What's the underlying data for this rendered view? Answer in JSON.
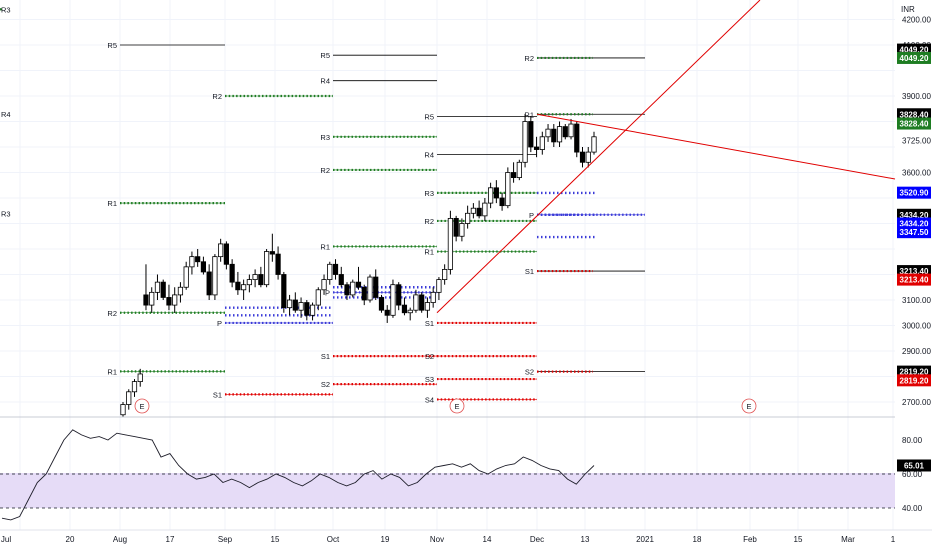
{
  "currency": "INR",
  "price_axis": {
    "ticks": [
      "4200.00",
      "4100.00",
      "3900.00",
      "3725.00",
      "3600.00",
      "3100.00",
      "3000.00",
      "2900.00",
      "2700.00"
    ],
    "tick_values": [
      4200,
      4100,
      3900,
      3725,
      3600,
      3100,
      3000,
      2900,
      2700
    ]
  },
  "time_axis": {
    "ticks": [
      "Jul",
      "20",
      "Aug",
      "17",
      "Sep",
      "15",
      "Oct",
      "19",
      "Nov",
      "14",
      "Dec",
      "13",
      "2021",
      "18",
      "Feb",
      "15",
      "Mar",
      "1"
    ]
  },
  "price_tags": [
    {
      "label": "4049.20",
      "value": 4082,
      "color": "#000000"
    },
    {
      "label": "4049.20",
      "value": 4049.2,
      "color": "#1e7d22"
    },
    {
      "label": "3828.40",
      "value": 3828.4,
      "color": "#000000"
    },
    {
      "label": "3828.40",
      "value": 3792,
      "color": "#1e7d22"
    },
    {
      "label": "3520.90",
      "value": 3520.9,
      "color": "#0000ff"
    },
    {
      "label": "3434.20",
      "value": 3434.2,
      "color": "#000000"
    },
    {
      "label": "3434.20",
      "value": 3400,
      "color": "#0000ff"
    },
    {
      "label": "3347.50",
      "value": 3366,
      "color": "#0000ff"
    },
    {
      "label": "3213.40",
      "value": 3213.4,
      "color": "#000000"
    },
    {
      "label": "3213.40",
      "value": 3180,
      "color": "#e00000"
    },
    {
      "label": "2819.20",
      "value": 2819.2,
      "color": "#000000"
    },
    {
      "label": "2819.20",
      "value": 2785,
      "color": "#e00000"
    }
  ],
  "rsi": {
    "ticks": [
      "80.00",
      "60.00",
      "40.00"
    ],
    "tick_values": [
      80,
      60,
      40
    ],
    "current_label": "65.01",
    "current": 65.01
  },
  "earnings_marker": "E",
  "colors": {
    "resistance": "#1e7d22",
    "support": "#e00000",
    "pivot": "#3b3bd8",
    "trendline": "#e00000",
    "rsi_band": "#e6dcf7",
    "candle_up": "#ffffff",
    "candle_down": "#000000"
  },
  "chart_data": {
    "type": "line",
    "title": "",
    "xlabel": "",
    "ylabel": "INR",
    "ylim": [
      2650,
      4260
    ],
    "candles": [
      {
        "x": "Jul 30",
        "o": 2650,
        "h": 2700,
        "l": 2640,
        "c": 2690
      },
      {
        "x": "Jul 31",
        "o": 2690,
        "h": 2750,
        "l": 2670,
        "c": 2740
      },
      {
        "x": "Aug 3",
        "o": 2740,
        "h": 2790,
        "l": 2720,
        "c": 2780
      },
      {
        "x": "Aug 4",
        "o": 2780,
        "h": 2830,
        "l": 2760,
        "c": 2810
      },
      {
        "x": "Aug 10",
        "o": 3120,
        "h": 3240,
        "l": 3060,
        "c": 3080
      },
      {
        "x": "Aug 11",
        "o": 3080,
        "h": 3150,
        "l": 3050,
        "c": 3130
      },
      {
        "x": "Aug 12",
        "o": 3130,
        "h": 3200,
        "l": 3100,
        "c": 3170
      },
      {
        "x": "Aug 13",
        "o": 3170,
        "h": 3180,
        "l": 3100,
        "c": 3110
      },
      {
        "x": "Aug 14",
        "o": 3110,
        "h": 3160,
        "l": 3060,
        "c": 3080
      },
      {
        "x": "Aug 17",
        "o": 3080,
        "h": 3150,
        "l": 3050,
        "c": 3120
      },
      {
        "x": "Aug 18",
        "o": 3120,
        "h": 3170,
        "l": 3090,
        "c": 3150
      },
      {
        "x": "Aug 19",
        "o": 3150,
        "h": 3250,
        "l": 3140,
        "c": 3230
      },
      {
        "x": "Aug 20",
        "o": 3230,
        "h": 3290,
        "l": 3200,
        "c": 3270
      },
      {
        "x": "Aug 21",
        "o": 3270,
        "h": 3300,
        "l": 3230,
        "c": 3250
      },
      {
        "x": "Aug 24",
        "o": 3250,
        "h": 3270,
        "l": 3200,
        "c": 3210
      },
      {
        "x": "Aug 25",
        "o": 3210,
        "h": 3240,
        "l": 3100,
        "c": 3120
      },
      {
        "x": "Aug 26",
        "o": 3120,
        "h": 3280,
        "l": 3100,
        "c": 3270
      },
      {
        "x": "Aug 27",
        "o": 3270,
        "h": 3340,
        "l": 3250,
        "c": 3320
      },
      {
        "x": "Aug 28",
        "o": 3320,
        "h": 3330,
        "l": 3220,
        "c": 3240
      },
      {
        "x": "Aug 31",
        "o": 3240,
        "h": 3260,
        "l": 3150,
        "c": 3170
      },
      {
        "x": "Sep 1",
        "o": 3170,
        "h": 3210,
        "l": 3120,
        "c": 3140
      },
      {
        "x": "Sep 2",
        "o": 3140,
        "h": 3180,
        "l": 3100,
        "c": 3160
      },
      {
        "x": "Sep 3",
        "o": 3160,
        "h": 3200,
        "l": 3130,
        "c": 3180
      },
      {
        "x": "Sep 4",
        "o": 3180,
        "h": 3220,
        "l": 3150,
        "c": 3200
      },
      {
        "x": "Sep 7",
        "o": 3200,
        "h": 3230,
        "l": 3150,
        "c": 3160
      },
      {
        "x": "Sep 8",
        "o": 3160,
        "h": 3300,
        "l": 3150,
        "c": 3290
      },
      {
        "x": "Sep 9",
        "o": 3290,
        "h": 3360,
        "l": 3250,
        "c": 3280
      },
      {
        "x": "Sep 10",
        "o": 3280,
        "h": 3310,
        "l": 3180,
        "c": 3200
      },
      {
        "x": "Sep 11",
        "o": 3200,
        "h": 3210,
        "l": 3050,
        "c": 3070
      },
      {
        "x": "Sep 14",
        "o": 3070,
        "h": 3120,
        "l": 3040,
        "c": 3100
      },
      {
        "x": "Sep 15",
        "o": 3100,
        "h": 3130,
        "l": 3050,
        "c": 3060
      },
      {
        "x": "Sep 16",
        "o": 3060,
        "h": 3110,
        "l": 3030,
        "c": 3090
      },
      {
        "x": "Sep 17",
        "o": 3090,
        "h": 3100,
        "l": 3020,
        "c": 3040
      },
      {
        "x": "Sep 18",
        "o": 3040,
        "h": 3090,
        "l": 3020,
        "c": 3080
      },
      {
        "x": "Oct 5",
        "o": 3080,
        "h": 3150,
        "l": 3060,
        "c": 3140
      },
      {
        "x": "Oct 6",
        "o": 3140,
        "h": 3200,
        "l": 3120,
        "c": 3180
      },
      {
        "x": "Oct 7",
        "o": 3180,
        "h": 3250,
        "l": 3160,
        "c": 3240
      },
      {
        "x": "Oct 8",
        "o": 3240,
        "h": 3260,
        "l": 3180,
        "c": 3200
      },
      {
        "x": "Oct 9",
        "o": 3200,
        "h": 3230,
        "l": 3150,
        "c": 3160
      },
      {
        "x": "Oct 12",
        "o": 3160,
        "h": 3170,
        "l": 3100,
        "c": 3120
      },
      {
        "x": "Oct 13",
        "o": 3120,
        "h": 3180,
        "l": 3110,
        "c": 3170
      },
      {
        "x": "Oct 14",
        "o": 3170,
        "h": 3230,
        "l": 3140,
        "c": 3150
      },
      {
        "x": "Oct 15",
        "o": 3150,
        "h": 3160,
        "l": 3080,
        "c": 3100
      },
      {
        "x": "Oct 16",
        "o": 3100,
        "h": 3200,
        "l": 3090,
        "c": 3190
      },
      {
        "x": "Oct 19",
        "o": 3190,
        "h": 3220,
        "l": 3100,
        "c": 3110
      },
      {
        "x": "Oct 20",
        "o": 3110,
        "h": 3120,
        "l": 3050,
        "c": 3060
      },
      {
        "x": "Oct 21",
        "o": 3060,
        "h": 3080,
        "l": 3010,
        "c": 3040
      },
      {
        "x": "Oct 22",
        "o": 3040,
        "h": 3180,
        "l": 3030,
        "c": 3160
      },
      {
        "x": "Oct 23",
        "o": 3160,
        "h": 3170,
        "l": 3060,
        "c": 3080
      },
      {
        "x": "Oct 26",
        "o": 3080,
        "h": 3110,
        "l": 3040,
        "c": 3050
      },
      {
        "x": "Oct 27",
        "o": 3050,
        "h": 3070,
        "l": 3020,
        "c": 3060
      },
      {
        "x": "Oct 28",
        "o": 3060,
        "h": 3140,
        "l": 3050,
        "c": 3120
      },
      {
        "x": "Oct 29",
        "o": 3120,
        "h": 3130,
        "l": 3050,
        "c": 3060
      },
      {
        "x": "Nov 2",
        "o": 3060,
        "h": 3110,
        "l": 3030,
        "c": 3090
      },
      {
        "x": "Nov 3",
        "o": 3090,
        "h": 3150,
        "l": 3070,
        "c": 3130
      },
      {
        "x": "Nov 4",
        "o": 3130,
        "h": 3190,
        "l": 3100,
        "c": 3180
      },
      {
        "x": "Nov 5",
        "o": 3180,
        "h": 3240,
        "l": 3160,
        "c": 3220
      },
      {
        "x": "Nov 6",
        "o": 3220,
        "h": 3450,
        "l": 3200,
        "c": 3420
      },
      {
        "x": "Nov 9",
        "o": 3420,
        "h": 3430,
        "l": 3330,
        "c": 3350
      },
      {
        "x": "Nov 10",
        "o": 3350,
        "h": 3420,
        "l": 3330,
        "c": 3400
      },
      {
        "x": "Nov 11",
        "o": 3400,
        "h": 3470,
        "l": 3380,
        "c": 3440
      },
      {
        "x": "Nov 12",
        "o": 3440,
        "h": 3480,
        "l": 3420,
        "c": 3460
      },
      {
        "x": "Nov 13",
        "o": 3460,
        "h": 3490,
        "l": 3420,
        "c": 3430
      },
      {
        "x": "Nov 16",
        "o": 3430,
        "h": 3500,
        "l": 3410,
        "c": 3480
      },
      {
        "x": "Nov 17",
        "o": 3480,
        "h": 3560,
        "l": 3460,
        "c": 3540
      },
      {
        "x": "Nov 18",
        "o": 3540,
        "h": 3570,
        "l": 3480,
        "c": 3500
      },
      {
        "x": "Nov 19",
        "o": 3500,
        "h": 3520,
        "l": 3450,
        "c": 3470
      },
      {
        "x": "Nov 20",
        "o": 3470,
        "h": 3620,
        "l": 3460,
        "c": 3600
      },
      {
        "x": "Nov 23",
        "o": 3600,
        "h": 3640,
        "l": 3560,
        "c": 3580
      },
      {
        "x": "Nov 24",
        "o": 3580,
        "h": 3650,
        "l": 3570,
        "c": 3640
      },
      {
        "x": "Nov 25",
        "o": 3640,
        "h": 3830,
        "l": 3620,
        "c": 3800
      },
      {
        "x": "Nov 26",
        "o": 3800,
        "h": 3820,
        "l": 3680,
        "c": 3700
      },
      {
        "x": "Dec 1",
        "o": 3700,
        "h": 3740,
        "l": 3660,
        "c": 3690
      },
      {
        "x": "Dec 2",
        "o": 3690,
        "h": 3760,
        "l": 3670,
        "c": 3740
      },
      {
        "x": "Dec 3",
        "o": 3740,
        "h": 3790,
        "l": 3720,
        "c": 3770
      },
      {
        "x": "Dec 4",
        "o": 3770,
        "h": 3790,
        "l": 3700,
        "c": 3720
      },
      {
        "x": "Dec 7",
        "o": 3720,
        "h": 3800,
        "l": 3700,
        "c": 3780
      },
      {
        "x": "Dec 8",
        "o": 3780,
        "h": 3790,
        "l": 3730,
        "c": 3740
      },
      {
        "x": "Dec 9",
        "o": 3740,
        "h": 3810,
        "l": 3730,
        "c": 3790
      },
      {
        "x": "Dec 10",
        "o": 3790,
        "h": 3800,
        "l": 3660,
        "c": 3680
      },
      {
        "x": "Dec 11",
        "o": 3680,
        "h": 3700,
        "l": 3620,
        "c": 3640
      },
      {
        "x": "Dec 14",
        "o": 3640,
        "h": 3700,
        "l": 3620,
        "c": 3680
      },
      {
        "x": "Dec 15",
        "o": 3680,
        "h": 3760,
        "l": 3670,
        "c": 3740
      }
    ],
    "series": [
      {
        "values": [
          34,
          33,
          35,
          45,
          55,
          60,
          70,
          80,
          86,
          83,
          81,
          82,
          80,
          84,
          83,
          82,
          81,
          80,
          70,
          72,
          65,
          60,
          57,
          58,
          60,
          55,
          57,
          55,
          52,
          55,
          57,
          60,
          58,
          55,
          53,
          56,
          60,
          58,
          55,
          53,
          55,
          60,
          62,
          57,
          60,
          58,
          53,
          55,
          60,
          64,
          65,
          66,
          64,
          66,
          62,
          60,
          63,
          65,
          66,
          70,
          68,
          65,
          63,
          62,
          57,
          54,
          60,
          65
        ]
      }
    ],
    "pivot_levels": [
      {
        "label": "R3",
        "value": 4240
      },
      {
        "label": "R5",
        "value": 4100
      },
      {
        "label": "R2",
        "value": 3900
      },
      {
        "label": "R4",
        "value": 3830
      },
      {
        "label": "R1",
        "value": 3480
      },
      {
        "label": "R3",
        "value": 3440
      },
      {
        "label": "R2",
        "value": 3050
      },
      {
        "label": "P",
        "value": 3010
      },
      {
        "label": "R1",
        "value": 2820
      },
      {
        "label": "S1",
        "value": 2730
      },
      {
        "label": "R5",
        "value": 4060
      },
      {
        "label": "R4",
        "value": 3960
      },
      {
        "label": "R3",
        "value": 3740
      },
      {
        "label": "R2",
        "value": 3610
      },
      {
        "label": "R1",
        "value": 3310
      },
      {
        "label": "P",
        "value": 3130
      },
      {
        "label": "S1",
        "value": 2880
      },
      {
        "label": "S2",
        "value": 2770
      },
      {
        "label": "R5",
        "value": 3820
      },
      {
        "label": "R4",
        "value": 3670
      },
      {
        "label": "R3",
        "value": 3520
      },
      {
        "label": "R2",
        "value": 3410
      },
      {
        "label": "R1",
        "value": 3290
      },
      {
        "label": "S1",
        "value": 3010
      },
      {
        "label": "S2",
        "value": 2880
      },
      {
        "label": "S3",
        "value": 2790
      },
      {
        "label": "S4",
        "value": 2710
      },
      {
        "label": "R2",
        "value": 4049.2
      },
      {
        "label": "R1",
        "value": 3828.4
      },
      {
        "label": "P",
        "value": 3434.2
      },
      {
        "label": "S1",
        "value": 3213.4
      },
      {
        "label": "S2",
        "value": 2819.2
      }
    ]
  }
}
